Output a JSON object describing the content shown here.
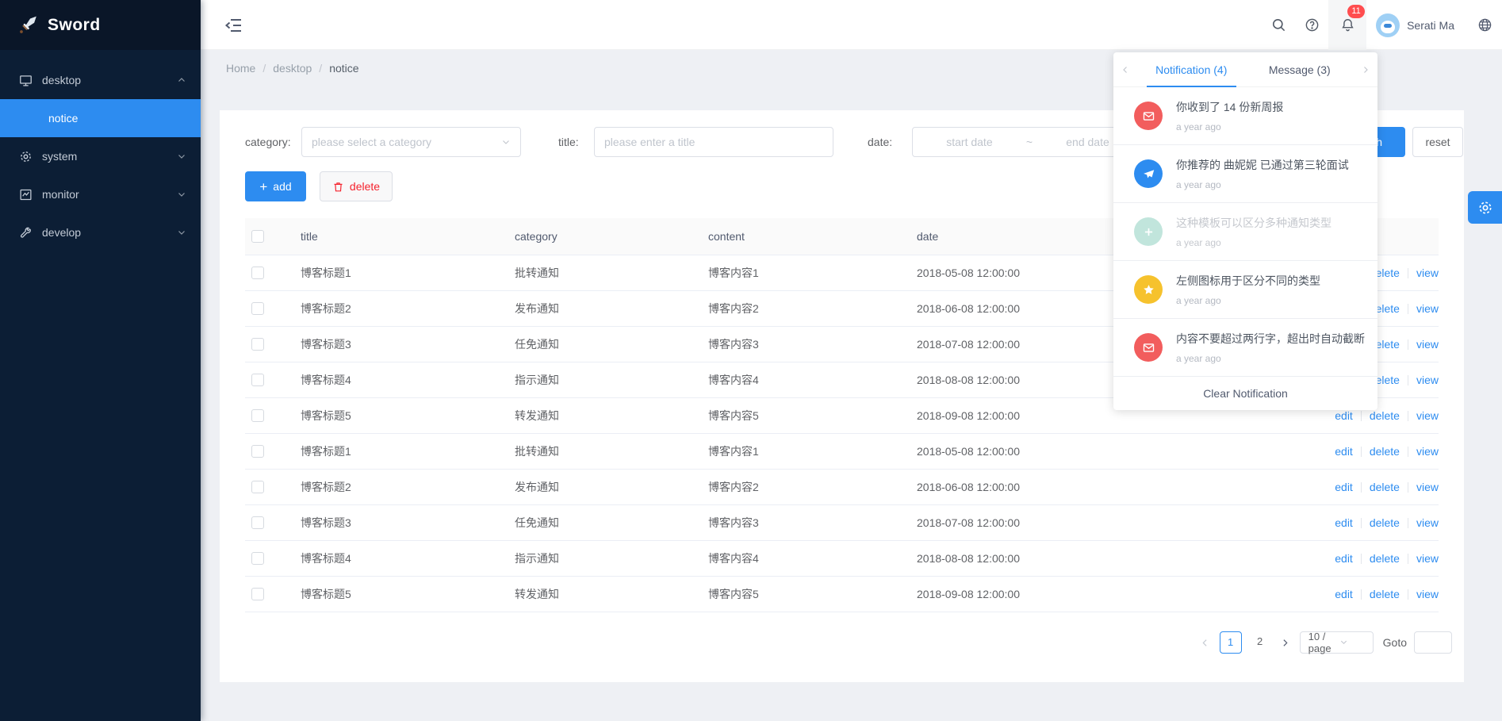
{
  "app": {
    "title": "Sword"
  },
  "sidebar": {
    "logo_text": "Sword",
    "items": [
      {
        "label": "desktop",
        "icon": "monitor-icon",
        "state": "expanded"
      },
      {
        "label": "system",
        "icon": "gear-icon",
        "state": "collapsed"
      },
      {
        "label": "monitor",
        "icon": "chart-icon",
        "state": "collapsed"
      },
      {
        "label": "develop",
        "icon": "wrench-icon",
        "state": "collapsed"
      }
    ],
    "submenu": {
      "label": "notice",
      "active": true
    }
  },
  "header": {
    "user_name": "Serati Ma",
    "notification_badge": "11"
  },
  "breadcrumb": {
    "items": [
      "Home",
      "desktop",
      "notice"
    ],
    "separator": "/"
  },
  "filters": {
    "category_label": "category:",
    "category_placeholder": "please select a category",
    "title_label": "title:",
    "title_placeholder": "please enter a title",
    "date_label": "date:",
    "date_start_placeholder": "start date",
    "date_separator": "~",
    "date_end_placeholder": "end date",
    "search_label": "search",
    "reset_label": "reset"
  },
  "toolbar": {
    "add_label": "add",
    "delete_label": "delete"
  },
  "table": {
    "columns": [
      "title",
      "category",
      "content",
      "date"
    ],
    "action_labels": [
      "edit",
      "delete",
      "view"
    ],
    "rows": [
      {
        "title": "博客标题1",
        "category": "批转通知",
        "content": "博客内容1",
        "date": "2018-05-08 12:00:00"
      },
      {
        "title": "博客标题2",
        "category": "发布通知",
        "content": "博客内容2",
        "date": "2018-06-08 12:00:00"
      },
      {
        "title": "博客标题3",
        "category": "任免通知",
        "content": "博客内容3",
        "date": "2018-07-08 12:00:00"
      },
      {
        "title": "博客标题4",
        "category": "指示通知",
        "content": "博客内容4",
        "date": "2018-08-08 12:00:00"
      },
      {
        "title": "博客标题5",
        "category": "转发通知",
        "content": "博客内容5",
        "date": "2018-09-08 12:00:00"
      },
      {
        "title": "博客标题1",
        "category": "批转通知",
        "content": "博客内容1",
        "date": "2018-05-08 12:00:00"
      },
      {
        "title": "博客标题2",
        "category": "发布通知",
        "content": "博客内容2",
        "date": "2018-06-08 12:00:00"
      },
      {
        "title": "博客标题3",
        "category": "任免通知",
        "content": "博客内容3",
        "date": "2018-07-08 12:00:00"
      },
      {
        "title": "博客标题4",
        "category": "指示通知",
        "content": "博客内容4",
        "date": "2018-08-08 12:00:00"
      },
      {
        "title": "博客标题5",
        "category": "转发通知",
        "content": "博客内容5",
        "date": "2018-09-08 12:00:00"
      }
    ]
  },
  "pagination": {
    "pages": [
      "1",
      "2"
    ],
    "active_page": "1",
    "page_size": "10 / page",
    "goto_label": "Goto"
  },
  "notification_panel": {
    "tabs": [
      {
        "label": "Notification (4)",
        "active": true
      },
      {
        "label": "Message (3)",
        "active": false
      }
    ],
    "items": [
      {
        "icon": "mail-icon",
        "color": "#f25d5d",
        "title": "你收到了 14 份新周报",
        "time": "a year ago",
        "read": false
      },
      {
        "icon": "bird-icon",
        "color": "#2d8cf0",
        "title": "你推荐的 曲妮妮 已通过第三轮面试",
        "time": "a year ago",
        "read": false
      },
      {
        "icon": "plus-icon",
        "color": "#8fd0c0",
        "title": "这种模板可以区分多种通知类型",
        "time": "a year ago",
        "read": true
      },
      {
        "icon": "star-icon",
        "color": "#f6c22d",
        "title": "左侧图标用于区分不同的类型",
        "time": "a year ago",
        "read": false
      },
      {
        "icon": "mail-icon",
        "color": "#f25d5d",
        "title": "内容不要超过两行字，超出时自动截断",
        "time": "a year ago",
        "read": false
      }
    ],
    "footer": "Clear Notification"
  },
  "colors": {
    "accent": "#2d8cf0",
    "sidebar_bg": "#0c1e35",
    "badge": "#ff4d4f",
    "danger": "#f5222d"
  }
}
